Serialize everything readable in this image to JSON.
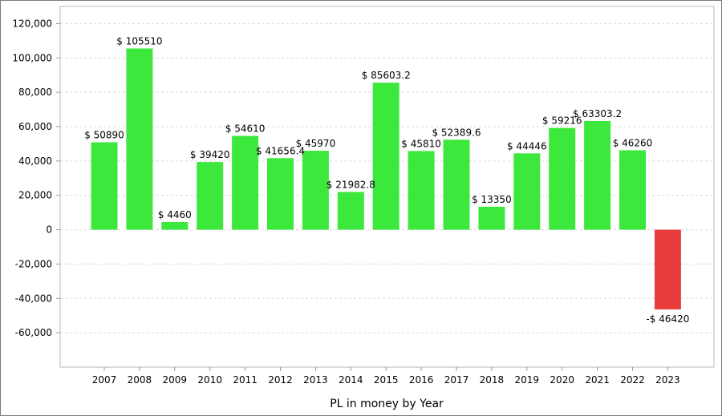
{
  "chart_data": {
    "type": "bar",
    "title": "",
    "xlabel": "PL in money by Year",
    "ylabel": "",
    "ylim": [
      -80000,
      130000
    ],
    "yticks": [
      -60000,
      -40000,
      -20000,
      0,
      20000,
      40000,
      60000,
      80000,
      100000,
      120000
    ],
    "ytick_labels": [
      "-60,000",
      "-40,000",
      "-20,000",
      "0",
      "20,000",
      "40,000",
      "60,000",
      "80,000",
      "100,000",
      "120,000"
    ],
    "grid": true,
    "categories": [
      "2007",
      "2008",
      "2009",
      "2010",
      "2011",
      "2012",
      "2013",
      "2014",
      "2015",
      "2016",
      "2017",
      "2018",
      "2019",
      "2020",
      "2021",
      "2022",
      "2023"
    ],
    "values": [
      50890,
      105510,
      4460,
      39420,
      54610,
      41656.4,
      45970,
      21982.8,
      85603.2,
      45810,
      52389.6,
      13350,
      44446,
      59216,
      63303.2,
      46260,
      -46420
    ],
    "data_labels": [
      "$ 50890",
      "$ 105510",
      "$ 4460",
      "$ 39420",
      "$ 54610",
      "$ 41656.4",
      "$ 45970",
      "$ 21982.8",
      "$ 85603.2",
      "$ 45810",
      "$ 52389.6",
      "$ 13350",
      "$ 44446",
      "$ 59216",
      "$ 63303.2",
      "$ 46260",
      "-$ 46420"
    ],
    "colors": {
      "positive": "#3de83d",
      "negative": "#e83d3d",
      "grid": "#d9d9d9",
      "axis": "#999999"
    }
  }
}
